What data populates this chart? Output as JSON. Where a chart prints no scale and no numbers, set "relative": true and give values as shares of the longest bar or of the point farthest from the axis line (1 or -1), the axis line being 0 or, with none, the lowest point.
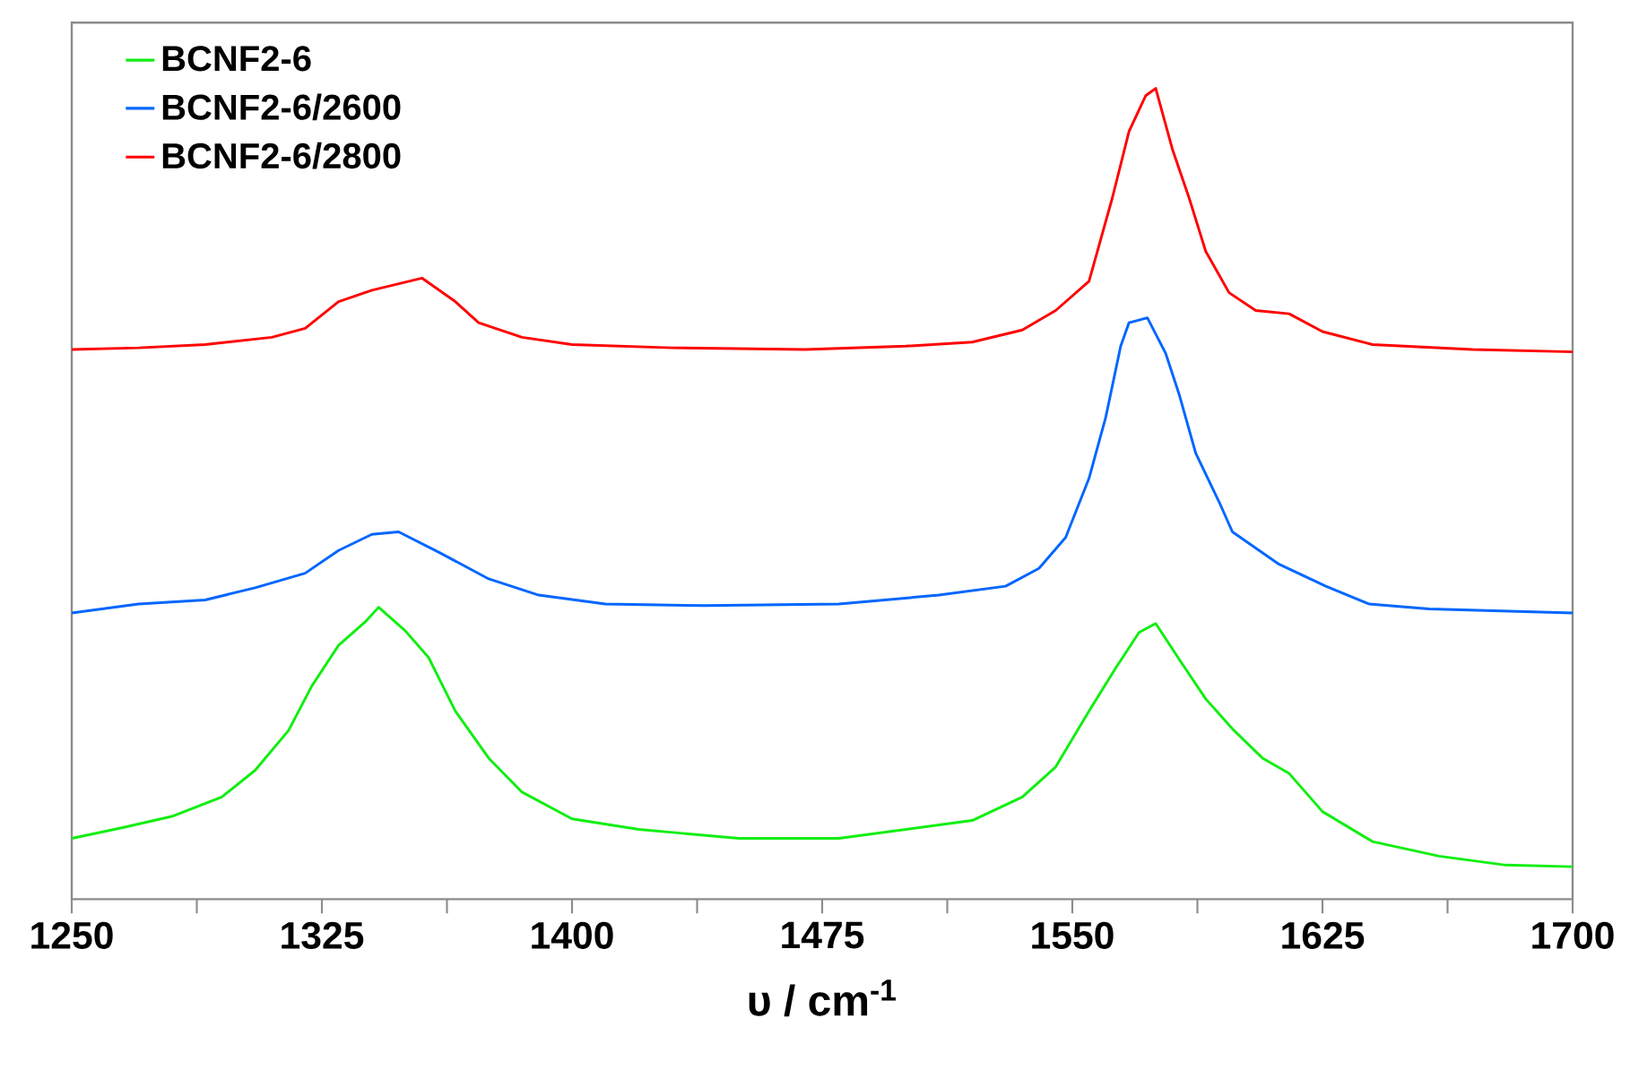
{
  "chart_data": {
    "type": "line",
    "relative": true,
    "xlabel": "υ / cm$^{-1}$",
    "legend": "top left",
    "xlim": [
      1250,
      1700
    ],
    "xticks": [
      1250,
      {
        "value": 1287.5,
        "label": null
      },
      1325,
      {
        "value": 1362.5,
        "label": null
      },
      1400,
      {
        "value": 1437.5,
        "label": null
      },
      1475,
      {
        "value": 1512.5,
        "label": null
      },
      1550,
      {
        "value": 1587.5,
        "label": null
      },
      1625,
      {
        "value": 1662.5,
        "label": null
      },
      1700
    ],
    "series": [
      {
        "name": "BCNF2-6",
        "color": "#11ee11",
        "x": [
          1250,
          1265,
          1280,
          1295,
          1305,
          1315,
          1322,
          1330,
          1338,
          1342,
          1350,
          1357,
          1365,
          1375,
          1385,
          1400,
          1420,
          1450,
          1480,
          1500,
          1520,
          1535,
          1545,
          1555,
          1563,
          1570,
          1575,
          1582,
          1590,
          1598,
          1607,
          1615,
          1625,
          1640,
          1660,
          1680,
          1700
        ],
        "values": [
          0.075,
          0.088,
          0.102,
          0.126,
          0.159,
          0.208,
          0.263,
          0.313,
          0.342,
          0.36,
          0.331,
          0.298,
          0.232,
          0.174,
          0.132,
          0.099,
          0.086,
          0.075,
          0.075,
          0.086,
          0.097,
          0.126,
          0.163,
          0.232,
          0.285,
          0.329,
          0.34,
          0.296,
          0.247,
          0.21,
          0.174,
          0.155,
          0.108,
          0.071,
          0.053,
          0.042,
          0.04
        ]
      },
      {
        "name": "BCNF2-6/2600",
        "color": "#0066ff",
        "x": [
          1250,
          1270,
          1290,
          1305,
          1320,
          1330,
          1340,
          1348,
          1360,
          1375,
          1390,
          1410,
          1440,
          1480,
          1510,
          1530,
          1540,
          1548,
          1555,
          1560,
          1564.5,
          1567,
          1572.5,
          1578,
          1582,
          1587,
          1594,
          1598,
          1612,
          1626,
          1639,
          1657,
          1700
        ],
        "values": [
          0.353,
          0.364,
          0.369,
          0.384,
          0.402,
          0.43,
          0.45,
          0.453,
          0.428,
          0.395,
          0.375,
          0.364,
          0.362,
          0.364,
          0.375,
          0.386,
          0.408,
          0.446,
          0.519,
          0.594,
          0.682,
          0.711,
          0.717,
          0.673,
          0.623,
          0.55,
          0.49,
          0.453,
          0.413,
          0.386,
          0.364,
          0.358,
          0.353
        ]
      },
      {
        "name": "BCNF2-6/2800",
        "color": "#ff0000",
        "x": [
          1250,
          1270,
          1290,
          1310,
          1320,
          1330,
          1340,
          1355,
          1365,
          1372,
          1385,
          1400,
          1430,
          1470,
          1500,
          1520,
          1535,
          1545,
          1555,
          1562,
          1567,
          1572,
          1575,
          1580,
          1585,
          1590,
          1597,
          1605,
          1615,
          1625,
          1640,
          1670,
          1700
        ],
        "values": [
          0.678,
          0.68,
          0.684,
          0.693,
          0.704,
          0.737,
          0.751,
          0.766,
          0.737,
          0.711,
          0.693,
          0.684,
          0.68,
          0.678,
          0.682,
          0.687,
          0.702,
          0.726,
          0.762,
          0.865,
          0.947,
          0.991,
          1.0,
          0.925,
          0.865,
          0.799,
          0.748,
          0.726,
          0.722,
          0.7,
          0.684,
          0.678,
          0.675
        ]
      }
    ]
  }
}
